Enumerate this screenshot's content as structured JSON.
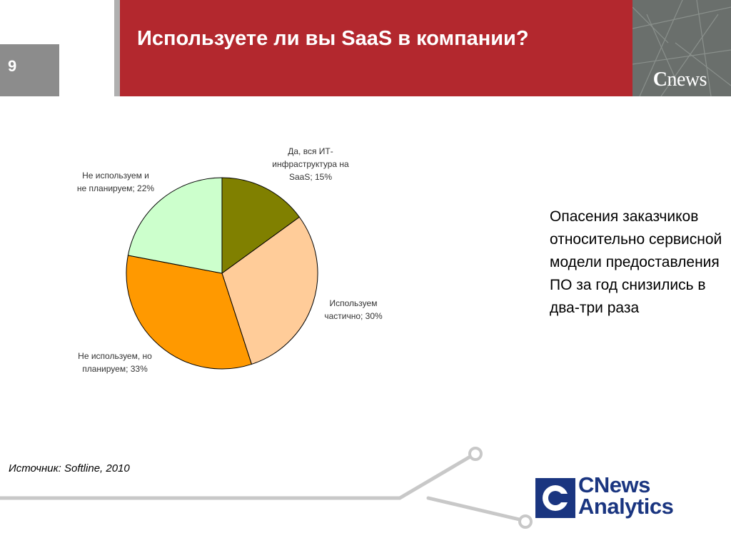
{
  "header": {
    "slide_number": "9",
    "title": "Используете ли вы SaaS в компании?",
    "brand_small": "news",
    "brand_small_c": "C"
  },
  "chart_data": {
    "type": "pie",
    "title": "",
    "slices": [
      {
        "label": "Да, вся ИТ-\nинфраструктура на\nSaaS; 15%",
        "value": 15,
        "color": "#808000"
      },
      {
        "label": "Используем\nчастично; 30%",
        "value": 30,
        "color": "#ffcc99"
      },
      {
        "label": "Не используем, но\nпланируем; 33%",
        "value": 33,
        "color": "#ff9900"
      },
      {
        "label": "Не используем и\nне планируем; 22%",
        "value": 22,
        "color": "#ccffcc"
      }
    ]
  },
  "side_note": "Опасения заказчиков относительно сервисной модели предоставления ПО за год снизились в два-три раза",
  "source": "Источник: Softline, 2010",
  "logo": {
    "line1": "CNews",
    "line2": "Analytics"
  },
  "colors": {
    "title_bg": "#b3282e",
    "logo_blue": "#1a3580"
  }
}
